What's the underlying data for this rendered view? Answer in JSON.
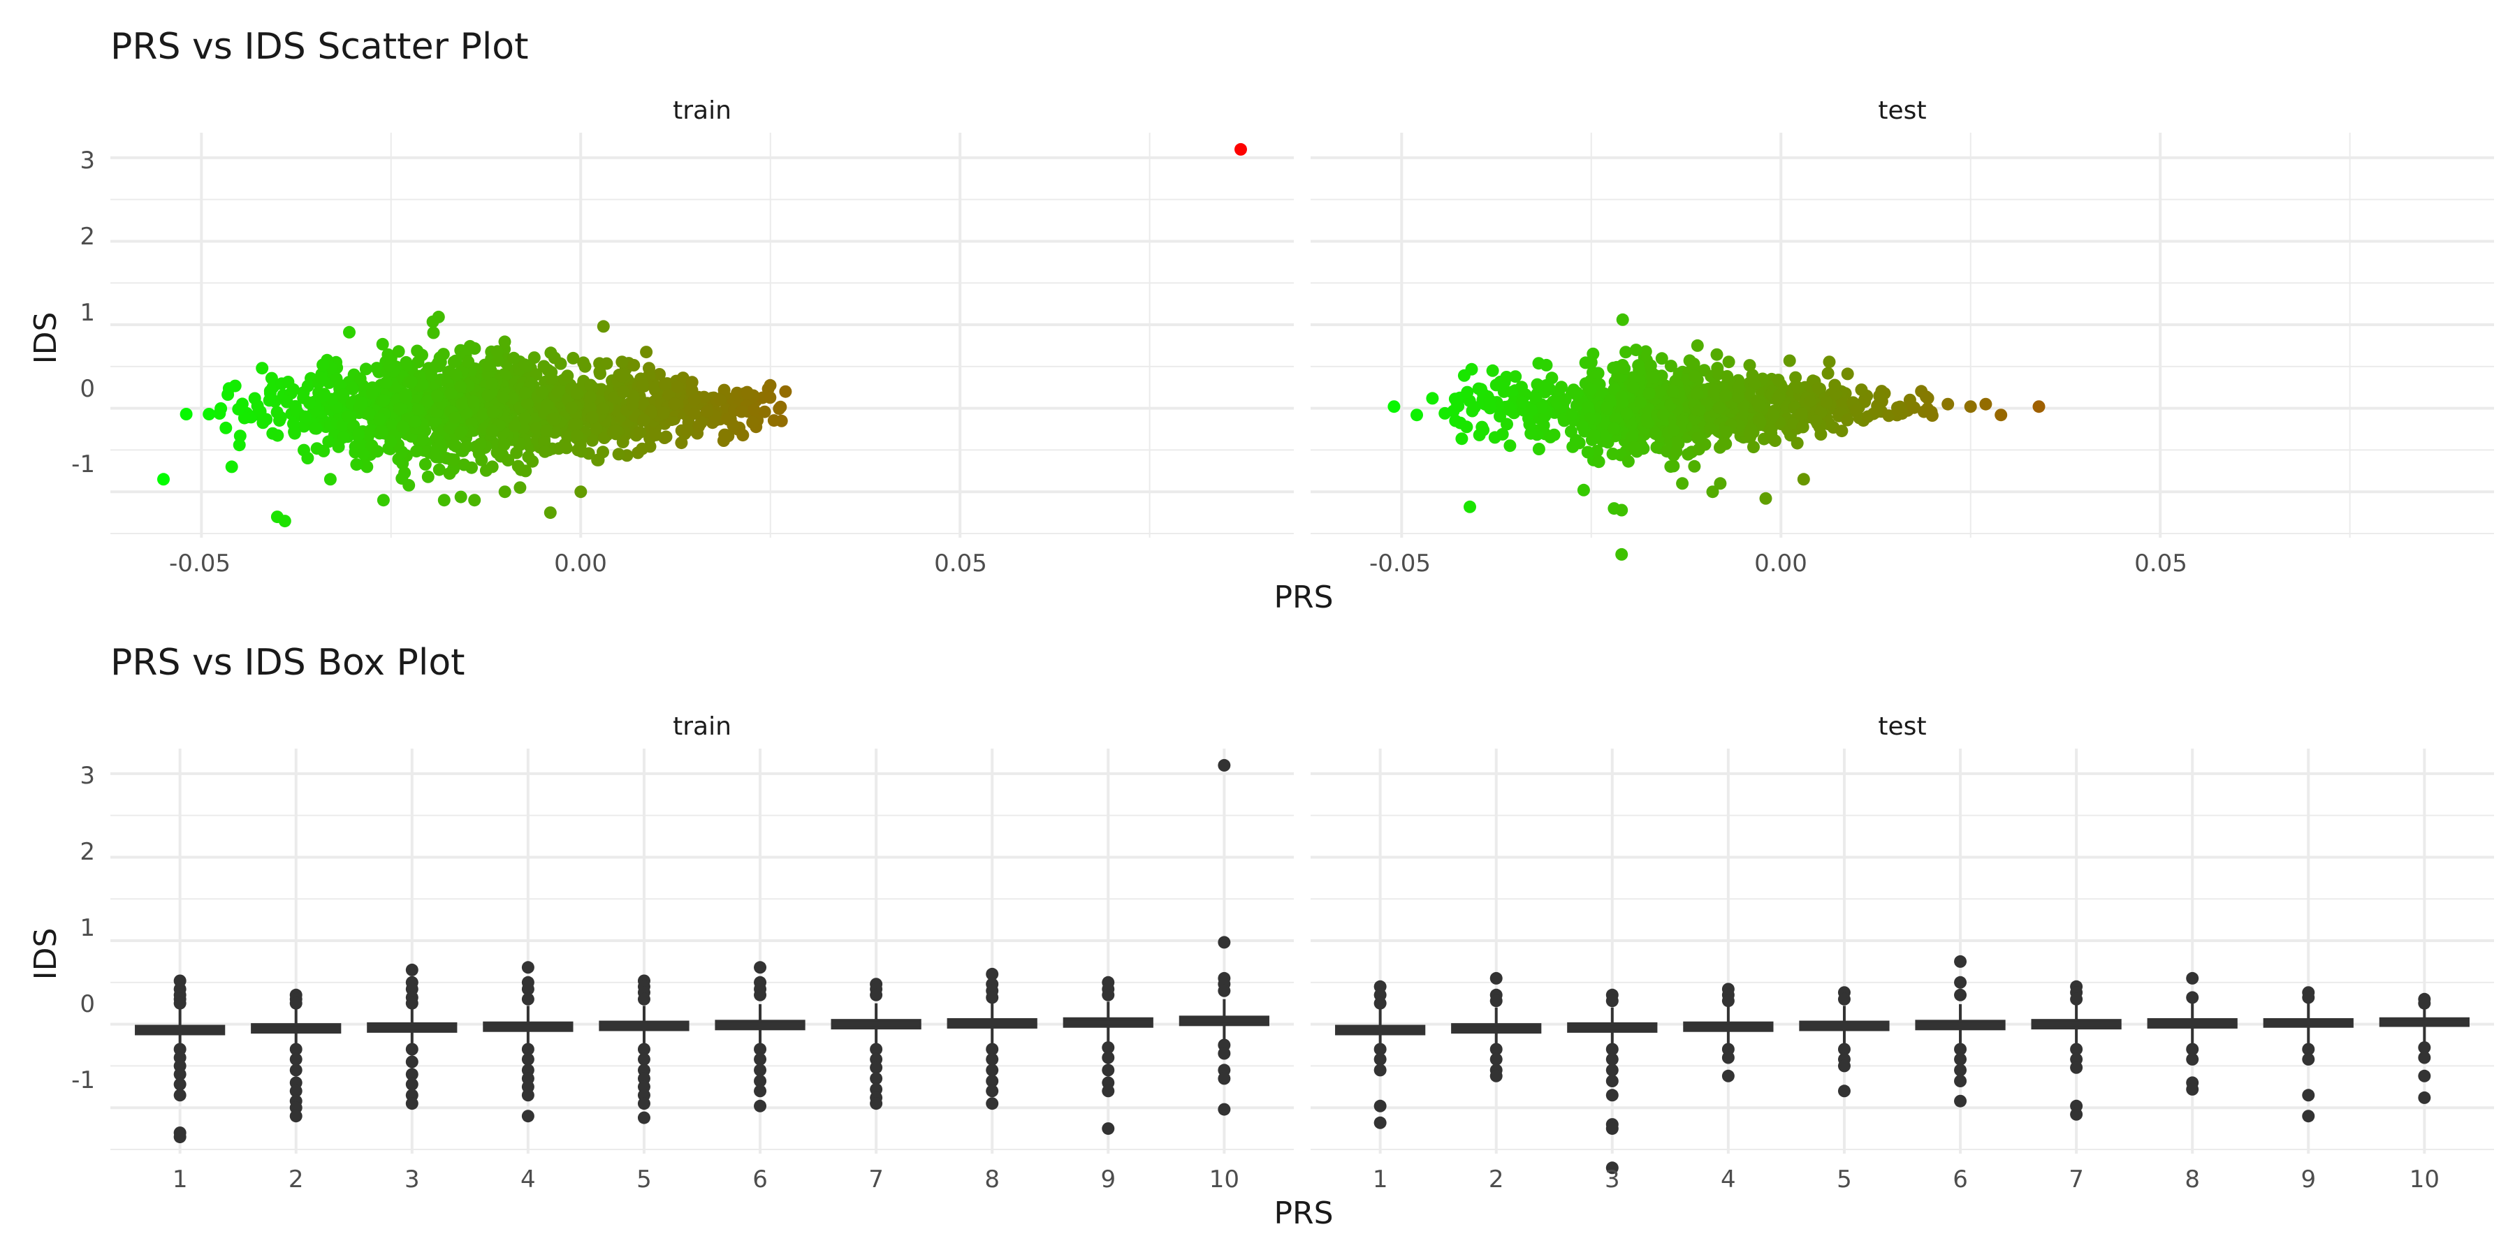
{
  "scatter": {
    "title": "PRS vs IDS Scatter Plot",
    "xlabel": "PRS",
    "ylabel": "IDS",
    "x_ticks": [
      "-0.05",
      "0.00",
      "0.05"
    ],
    "y_ticks": [
      "-1",
      "0",
      "1",
      "2",
      "3"
    ],
    "facets": [
      "train",
      "test"
    ]
  },
  "box": {
    "title": "PRS vs IDS Box Plot",
    "xlabel": "PRS",
    "ylabel": "IDS",
    "x_ticks": [
      "1",
      "2",
      "3",
      "4",
      "5",
      "6",
      "7",
      "8",
      "9",
      "10"
    ],
    "y_ticks": [
      "-1",
      "0",
      "1",
      "2",
      "3"
    ],
    "facets": [
      "train",
      "test"
    ]
  },
  "chart_data": [
    {
      "type": "scatter",
      "title": "PRS vs IDS Scatter Plot",
      "xlabel": "PRS",
      "ylabel": "IDS",
      "xlim": [
        -0.062,
        0.094
      ],
      "ylim": [
        -1.55,
        3.3
      ],
      "grid": true,
      "color_scale": {
        "low": "#00ff00",
        "high": "#ff0000"
      },
      "facets": [
        {
          "name": "train",
          "cloud": {
            "x_range": [
              -0.048,
              0.027
            ],
            "y_center": 0.0,
            "y_spread": 0.3,
            "n": 1400
          },
          "points": [
            {
              "x": -0.055,
              "y": -0.85
            },
            {
              "x": -0.052,
              "y": -0.07
            },
            {
              "x": -0.049,
              "y": -0.07
            },
            {
              "x": -0.046,
              "y": -0.7
            },
            {
              "x": -0.042,
              "y": 0.48
            },
            {
              "x": -0.04,
              "y": -1.3
            },
            {
              "x": -0.039,
              "y": -1.35
            },
            {
              "x": -0.034,
              "y": 0.52
            },
            {
              "x": -0.033,
              "y": -0.85
            },
            {
              "x": -0.026,
              "y": -1.1
            },
            {
              "x": -0.025,
              "y": 0.6
            },
            {
              "x": -0.024,
              "y": 0.68
            },
            {
              "x": -0.018,
              "y": -1.1
            },
            {
              "x": -0.014,
              "y": -1.1
            },
            {
              "x": -0.011,
              "y": 0.68
            },
            {
              "x": -0.01,
              "y": -1.0
            },
            {
              "x": -0.008,
              "y": -0.95
            },
            {
              "x": -0.004,
              "y": -1.25
            },
            {
              "x": -0.001,
              "y": 0.6
            },
            {
              "x": 0.0,
              "y": -1.0
            },
            {
              "x": 0.003,
              "y": 0.98
            },
            {
              "x": 0.005,
              "y": -0.55
            },
            {
              "x": 0.009,
              "y": 0.48
            },
            {
              "x": 0.015,
              "y": 0.1
            },
            {
              "x": 0.022,
              "y": 0.18
            },
            {
              "x": 0.027,
              "y": 0.2
            },
            {
              "x": 0.087,
              "y": 3.1
            }
          ]
        },
        {
          "name": "test",
          "cloud": {
            "x_range": [
              -0.046,
              0.02
            ],
            "y_center": 0.0,
            "y_spread": 0.26,
            "n": 900
          },
          "points": [
            {
              "x": -0.051,
              "y": 0.02
            },
            {
              "x": -0.048,
              "y": -0.08
            },
            {
              "x": -0.041,
              "y": -1.18
            },
            {
              "x": -0.038,
              "y": 0.45
            },
            {
              "x": -0.035,
              "y": 0.38
            },
            {
              "x": -0.026,
              "y": -0.98
            },
            {
              "x": -0.025,
              "y": 0.55
            },
            {
              "x": -0.022,
              "y": -1.2
            },
            {
              "x": -0.021,
              "y": -1.22
            },
            {
              "x": -0.021,
              "y": -1.75
            },
            {
              "x": -0.013,
              "y": -0.9
            },
            {
              "x": -0.011,
              "y": 0.75
            },
            {
              "x": -0.009,
              "y": -1.0
            },
            {
              "x": -0.008,
              "y": -0.9
            },
            {
              "x": -0.002,
              "y": -1.08
            },
            {
              "x": 0.003,
              "y": -0.85
            },
            {
              "x": 0.017,
              "y": 0.1
            },
            {
              "x": 0.022,
              "y": 0.05
            },
            {
              "x": 0.025,
              "y": 0.02
            },
            {
              "x": 0.027,
              "y": 0.05
            },
            {
              "x": 0.029,
              "y": -0.08
            },
            {
              "x": 0.034,
              "y": 0.02
            }
          ]
        }
      ]
    },
    {
      "type": "box",
      "title": "PRS vs IDS Box Plot",
      "xlabel": "PRS",
      "ylabel": "IDS",
      "categories": [
        "1",
        "2",
        "3",
        "4",
        "5",
        "6",
        "7",
        "8",
        "9",
        "10"
      ],
      "ylim": [
        -1.55,
        3.3
      ],
      "grid": true,
      "facets": [
        {
          "name": "train",
          "boxes": [
            {
              "category": "1",
              "q1": -0.12,
              "median": -0.07,
              "q3": -0.02,
              "whisker_low": -0.3,
              "whisker_high": 0.18,
              "outliers": [
                0.52,
                0.42,
                0.35,
                0.3,
                0.25,
                -0.3,
                -0.4,
                -0.5,
                -0.6,
                -0.72,
                -0.85,
                -1.3,
                -1.35
              ]
            },
            {
              "category": "2",
              "q1": -0.1,
              "median": -0.05,
              "q3": 0.0,
              "whisker_low": -0.28,
              "whisker_high": 0.2,
              "outliers": [
                0.35,
                0.3,
                0.25,
                -0.3,
                -0.42,
                -0.55,
                -0.7,
                -0.8,
                -0.92,
                -1.0,
                -1.1
              ]
            },
            {
              "category": "3",
              "q1": -0.09,
              "median": -0.04,
              "q3": 0.01,
              "whisker_low": -0.28,
              "whisker_high": 0.2,
              "outliers": [
                0.65,
                0.5,
                0.42,
                0.32,
                0.25,
                -0.3,
                -0.45,
                -0.6,
                -0.72,
                -0.85,
                -0.95
              ]
            },
            {
              "category": "4",
              "q1": -0.08,
              "median": -0.03,
              "q3": 0.02,
              "whisker_low": -0.28,
              "whisker_high": 0.22,
              "outliers": [
                0.68,
                0.5,
                0.42,
                0.3,
                -0.3,
                -0.42,
                -0.55,
                -0.65,
                -0.75,
                -0.85,
                -1.1
              ]
            },
            {
              "category": "5",
              "q1": -0.07,
              "median": -0.02,
              "q3": 0.03,
              "whisker_low": -0.28,
              "whisker_high": 0.22,
              "outliers": [
                0.52,
                0.45,
                0.38,
                0.3,
                -0.3,
                -0.42,
                -0.55,
                -0.65,
                -0.75,
                -0.85,
                -0.95,
                -1.12
              ]
            },
            {
              "category": "6",
              "q1": -0.06,
              "median": -0.01,
              "q3": 0.04,
              "whisker_low": -0.26,
              "whisker_high": 0.24,
              "outliers": [
                0.68,
                0.5,
                0.42,
                0.35,
                -0.3,
                -0.42,
                -0.55,
                -0.68,
                -0.8,
                -0.98
              ]
            },
            {
              "category": "7",
              "q1": -0.05,
              "median": 0.0,
              "q3": 0.05,
              "whisker_low": -0.25,
              "whisker_high": 0.25,
              "outliers": [
                0.48,
                0.42,
                0.35,
                -0.3,
                -0.42,
                -0.52,
                -0.65,
                -0.78,
                -0.88,
                -0.95
              ]
            },
            {
              "category": "8",
              "q1": -0.04,
              "median": 0.01,
              "q3": 0.06,
              "whisker_low": -0.24,
              "whisker_high": 0.26,
              "outliers": [
                0.6,
                0.48,
                0.4,
                0.32,
                -0.3,
                -0.42,
                -0.55,
                -0.68,
                -0.8,
                -0.95
              ]
            },
            {
              "category": "9",
              "q1": -0.03,
              "median": 0.02,
              "q3": 0.07,
              "whisker_low": -0.22,
              "whisker_high": 0.27,
              "outliers": [
                0.5,
                0.42,
                0.35,
                -0.28,
                -0.4,
                -0.55,
                -0.7,
                -0.8,
                -1.25
              ]
            },
            {
              "category": "10",
              "q1": -0.01,
              "median": 0.04,
              "q3": 0.09,
              "whisker_low": -0.2,
              "whisker_high": 0.3,
              "outliers": [
                3.1,
                0.98,
                0.55,
                0.48,
                0.4,
                -0.25,
                -0.35,
                -0.55,
                -0.65,
                -1.02
              ]
            }
          ]
        },
        {
          "name": "test",
          "boxes": [
            {
              "category": "1",
              "q1": -0.12,
              "median": -0.07,
              "q3": -0.02,
              "whisker_low": -0.3,
              "whisker_high": 0.18,
              "outliers": [
                0.45,
                0.35,
                0.25,
                -0.3,
                -0.42,
                -0.55,
                -0.98,
                -1.18
              ]
            },
            {
              "category": "2",
              "q1": -0.1,
              "median": -0.05,
              "q3": 0.0,
              "whisker_low": -0.28,
              "whisker_high": 0.2,
              "outliers": [
                0.55,
                0.35,
                0.28,
                -0.3,
                -0.42,
                -0.55,
                -0.62
              ]
            },
            {
              "category": "3",
              "q1": -0.09,
              "median": -0.04,
              "q3": 0.01,
              "whisker_low": -0.28,
              "whisker_high": 0.2,
              "outliers": [
                0.35,
                0.28,
                -0.3,
                -0.42,
                -0.55,
                -0.68,
                -0.85,
                -1.2,
                -1.25,
                -1.72
              ]
            },
            {
              "category": "4",
              "q1": -0.08,
              "median": -0.03,
              "q3": 0.02,
              "whisker_low": -0.26,
              "whisker_high": 0.22,
              "outliers": [
                0.42,
                0.35,
                0.28,
                -0.3,
                -0.4,
                -0.62
              ]
            },
            {
              "category": "5",
              "q1": -0.07,
              "median": -0.02,
              "q3": 0.03,
              "whisker_low": -0.26,
              "whisker_high": 0.22,
              "outliers": [
                0.38,
                0.3,
                -0.3,
                -0.42,
                -0.5,
                -0.8
              ]
            },
            {
              "category": "6",
              "q1": -0.06,
              "median": -0.01,
              "q3": 0.04,
              "whisker_low": -0.26,
              "whisker_high": 0.24,
              "outliers": [
                0.75,
                0.5,
                0.35,
                -0.3,
                -0.42,
                -0.55,
                -0.68,
                -0.92
              ]
            },
            {
              "category": "7",
              "q1": -0.05,
              "median": 0.0,
              "q3": 0.05,
              "whisker_low": -0.25,
              "whisker_high": 0.25,
              "outliers": [
                0.45,
                0.38,
                0.3,
                -0.3,
                -0.42,
                -0.52,
                -0.98,
                -1.08
              ]
            },
            {
              "category": "8",
              "q1": -0.04,
              "median": 0.01,
              "q3": 0.06,
              "whisker_low": -0.24,
              "whisker_high": 0.26,
              "outliers": [
                0.55,
                0.32,
                -0.3,
                -0.42,
                -0.7,
                -0.78
              ]
            },
            {
              "category": "9",
              "q1": -0.03,
              "median": 0.01,
              "q3": 0.06,
              "whisker_low": -0.24,
              "whisker_high": 0.26,
              "outliers": [
                0.38,
                0.32,
                -0.3,
                -0.42,
                -0.85,
                -1.1
              ]
            },
            {
              "category": "10",
              "q1": -0.02,
              "median": 0.02,
              "q3": 0.07,
              "whisker_low": -0.22,
              "whisker_high": 0.27,
              "outliers": [
                0.3,
                0.25,
                -0.28,
                -0.4,
                -0.62,
                -0.88
              ]
            }
          ]
        }
      ]
    }
  ]
}
